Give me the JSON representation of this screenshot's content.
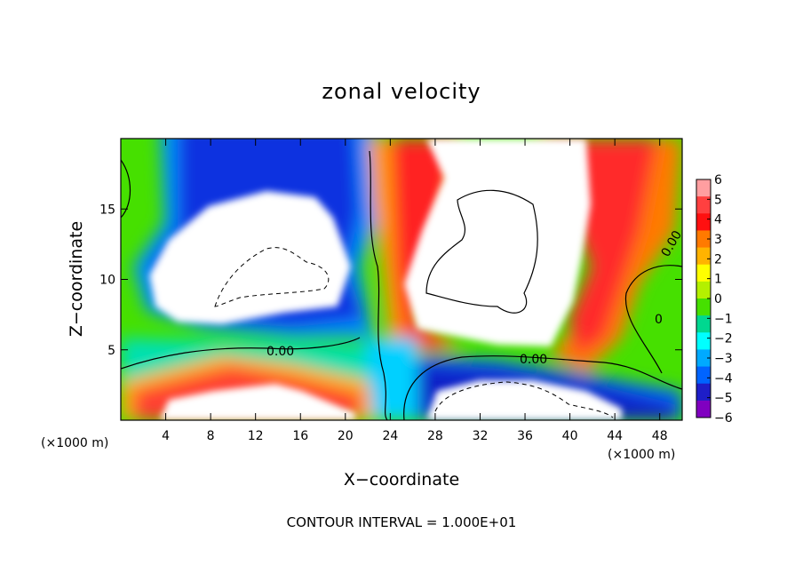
{
  "chart_data": {
    "type": "heatmap",
    "title": "zonal velocity",
    "xlabel": "X−coordinate",
    "ylabel": "Z−coordinate",
    "x_unit": "(×1000 m)",
    "y_unit": "(×1000 m)",
    "xlim": [
      0,
      50
    ],
    "ylim": [
      0,
      20
    ],
    "x_ticks": [
      4,
      8,
      12,
      16,
      20,
      24,
      28,
      32,
      36,
      40,
      44,
      48
    ],
    "y_ticks": [
      5,
      10,
      15
    ],
    "colorbar_ticks": [
      6,
      5,
      4,
      3,
      2,
      1,
      0,
      -1,
      -2,
      -3,
      -4,
      -5,
      -6
    ],
    "colorbar_ticks_text": [
      "6",
      "5",
      "4",
      "3",
      "2",
      "1",
      "0",
      "−1",
      "−2",
      "−3",
      "−4",
      "−5",
      "−6"
    ],
    "colorbar_colors": [
      "#ff9ea0",
      "#ff4040",
      "#ff1010",
      "#ff7a00",
      "#ffb300",
      "#ffff00",
      "#b4f000",
      "#46e000",
      "#00d890",
      "#00ffff",
      "#00aaff",
      "#0064ff",
      "#1e1ec8",
      "#8000c0"
    ],
    "contour_labels": [
      "0.00",
      "0.00",
      "0.00",
      "0"
    ],
    "footer": "CONTOUR INTERVAL = 1.000E+01"
  }
}
